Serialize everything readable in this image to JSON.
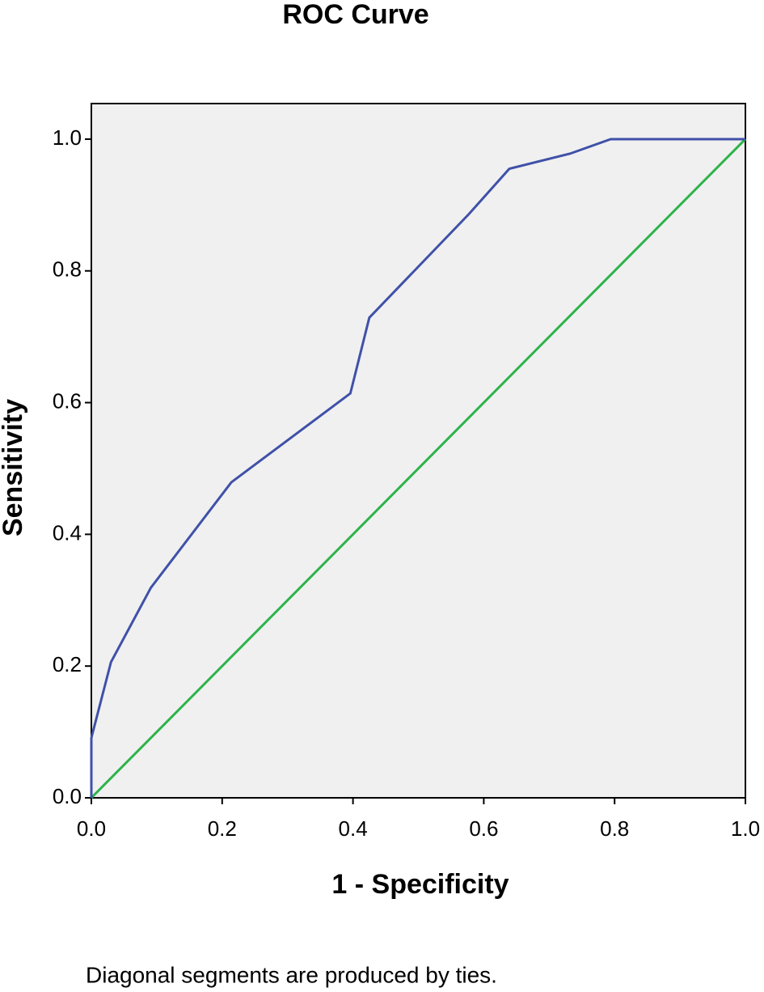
{
  "chart_data": {
    "type": "line",
    "title": "ROC Curve",
    "x_label": "1 - Specificity",
    "y_label": "Sensitivity",
    "note": "Diagonal segments are produced by ties.",
    "series": [
      {
        "color": "#3f51a8",
        "x": [
          0,
          0,
          0.03,
          0.091,
          0.214,
          0.396,
          0.425,
          0.577,
          0.639,
          0.732,
          0.794,
          1.0
        ],
        "values": [
          0,
          0.091,
          0.206,
          0.319,
          0.479,
          0.614,
          0.729,
          0.886,
          0.955,
          0.978,
          1.0,
          1.0
        ]
      },
      {
        "color": "#2db34a",
        "x": [
          0,
          1.0
        ],
        "values": [
          0,
          1.0
        ]
      }
    ],
    "xlim": [
      0,
      1.0
    ],
    "ylim": [
      0,
      1.054
    ],
    "xticks": [
      {
        "value": 0,
        "label": "0.0"
      },
      0.2,
      0.4,
      0.6,
      0.8,
      {
        "value": 1,
        "label": "1.0"
      }
    ],
    "yticks": [
      {
        "value": 0,
        "label": "0.0"
      },
      0.2,
      0.4,
      0.6,
      0.8,
      {
        "value": 1,
        "label": "1.0"
      }
    ],
    "background": "#f0f0f0"
  }
}
